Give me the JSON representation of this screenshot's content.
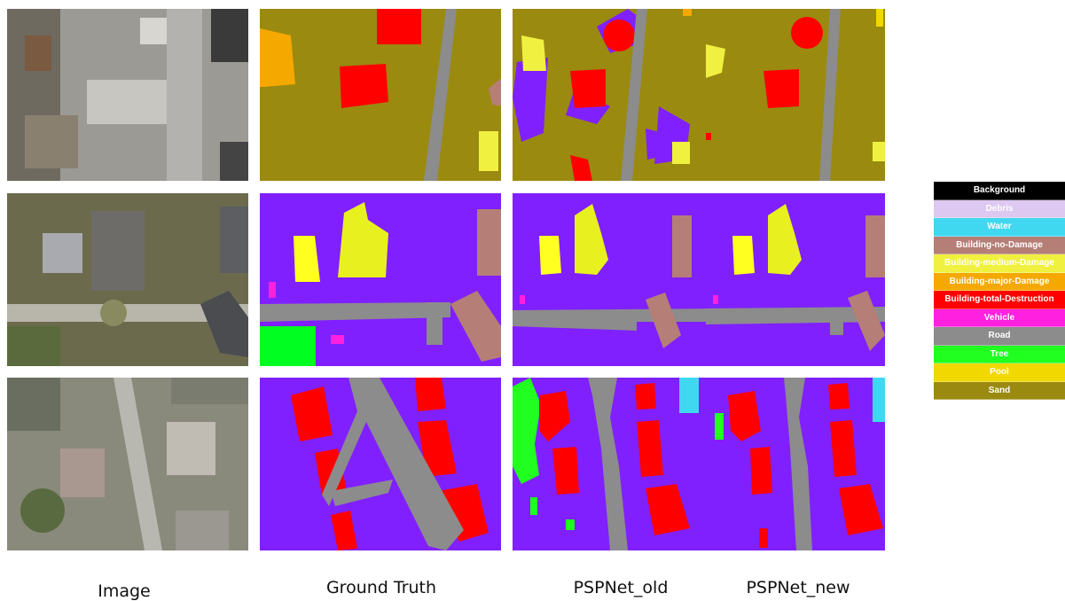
{
  "columns": [
    {
      "label": "Image"
    },
    {
      "label": "Ground Truth"
    },
    {
      "label": "PSPNet_old"
    },
    {
      "label": "PSPNet_new"
    }
  ],
  "legend": {
    "items": [
      {
        "label": "Background",
        "color": "#000000",
        "text_color": "#ffffff"
      },
      {
        "label": "Debris",
        "color": "#dcc8f0",
        "text_color": "#ffffff"
      },
      {
        "label": "Water",
        "color": "#40d8f0",
        "text_color": "#ffffff"
      },
      {
        "label": "Building-no-Damage",
        "color": "#b57e76",
        "text_color": "#ffffff"
      },
      {
        "label": "Building-medium-Damage",
        "color": "#f0f040",
        "text_color": "#ffffff"
      },
      {
        "label": "Building-major-Damage",
        "color": "#f5a800",
        "text_color": "#ffffff"
      },
      {
        "label": "Building-total-Destruction",
        "color": "#ff0000",
        "text_color": "#ffffff"
      },
      {
        "label": "Vehicle",
        "color": "#ff20e0",
        "text_color": "#ffffff"
      },
      {
        "label": "Road",
        "color": "#8c8c8c",
        "text_color": "#ffffff"
      },
      {
        "label": "Tree",
        "color": "#20ff20",
        "text_color": "#ffffff"
      },
      {
        "label": "Pool",
        "color": "#f0d800",
        "text_color": "#ffffff"
      },
      {
        "label": "Sand",
        "color": "#9a8a10",
        "text_color": "#ffffff"
      }
    ]
  }
}
